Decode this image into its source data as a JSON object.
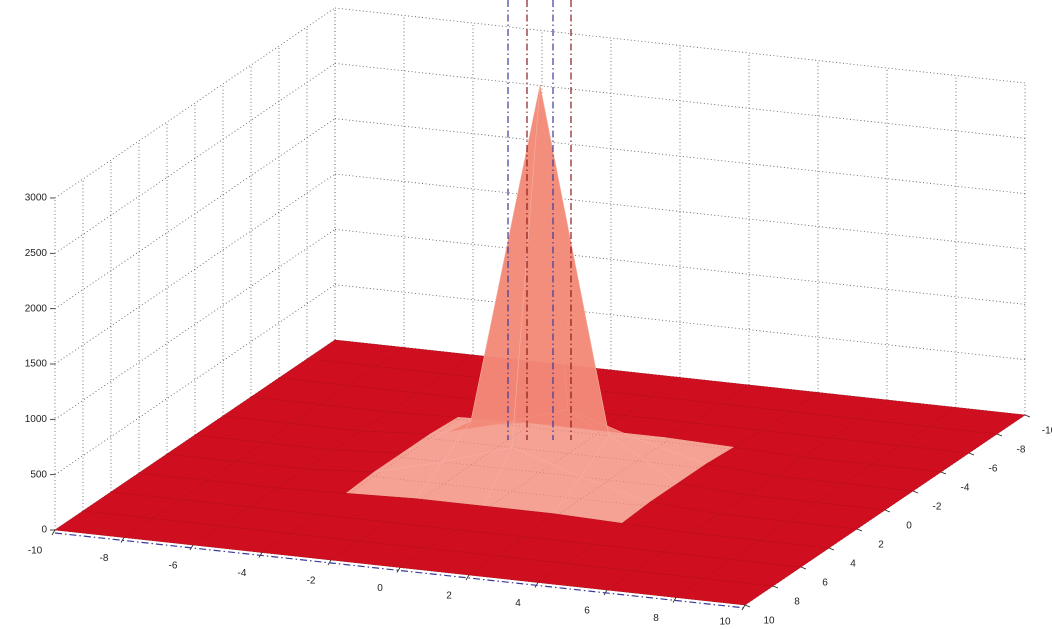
{
  "chart_data": {
    "type": "surface",
    "color": "#cf0f1f",
    "peak_color": "#f28a78",
    "x": [
      -10,
      -8,
      -6,
      -4,
      -2,
      0,
      2,
      4,
      6,
      8,
      10
    ],
    "y": [
      -10,
      -8,
      -6,
      -4,
      -2,
      0,
      2,
      4,
      6,
      8,
      10
    ],
    "z": [
      [
        0,
        0,
        0,
        0,
        0,
        0,
        0,
        0,
        0,
        0,
        0
      ],
      [
        0,
        0,
        0,
        0,
        0,
        0,
        0,
        0,
        0,
        0,
        0
      ],
      [
        0,
        0,
        0,
        0,
        0,
        0,
        0,
        0,
        0,
        0,
        0
      ],
      [
        0,
        0,
        0,
        20,
        40,
        40,
        40,
        20,
        0,
        0,
        0
      ],
      [
        0,
        0,
        0,
        40,
        200,
        400,
        200,
        40,
        0,
        0,
        0
      ],
      [
        0,
        0,
        0,
        40,
        400,
        3500,
        400,
        40,
        0,
        0,
        0
      ],
      [
        0,
        0,
        0,
        40,
        200,
        400,
        200,
        40,
        0,
        0,
        0
      ],
      [
        0,
        0,
        0,
        20,
        40,
        40,
        40,
        20,
        0,
        0,
        0
      ],
      [
        0,
        0,
        0,
        0,
        0,
        0,
        0,
        0,
        0,
        0,
        0
      ],
      [
        0,
        0,
        0,
        0,
        0,
        0,
        0,
        0,
        0,
        0,
        0
      ],
      [
        0,
        0,
        0,
        0,
        0,
        0,
        0,
        0,
        0,
        0,
        0
      ]
    ],
    "xlim": [
      -10,
      10
    ],
    "ylim": [
      -10,
      10
    ],
    "zlim": [
      0,
      3000
    ],
    "xticks": [
      -10,
      -8,
      -6,
      -4,
      -2,
      0,
      2,
      4,
      6,
      8,
      10
    ],
    "yticks": [
      -10,
      -8,
      -6,
      -4,
      -2,
      0,
      2,
      4,
      6,
      8,
      10
    ],
    "zticks": [
      0,
      500,
      1000,
      1500,
      2000,
      2500,
      3000
    ],
    "grid": true
  }
}
